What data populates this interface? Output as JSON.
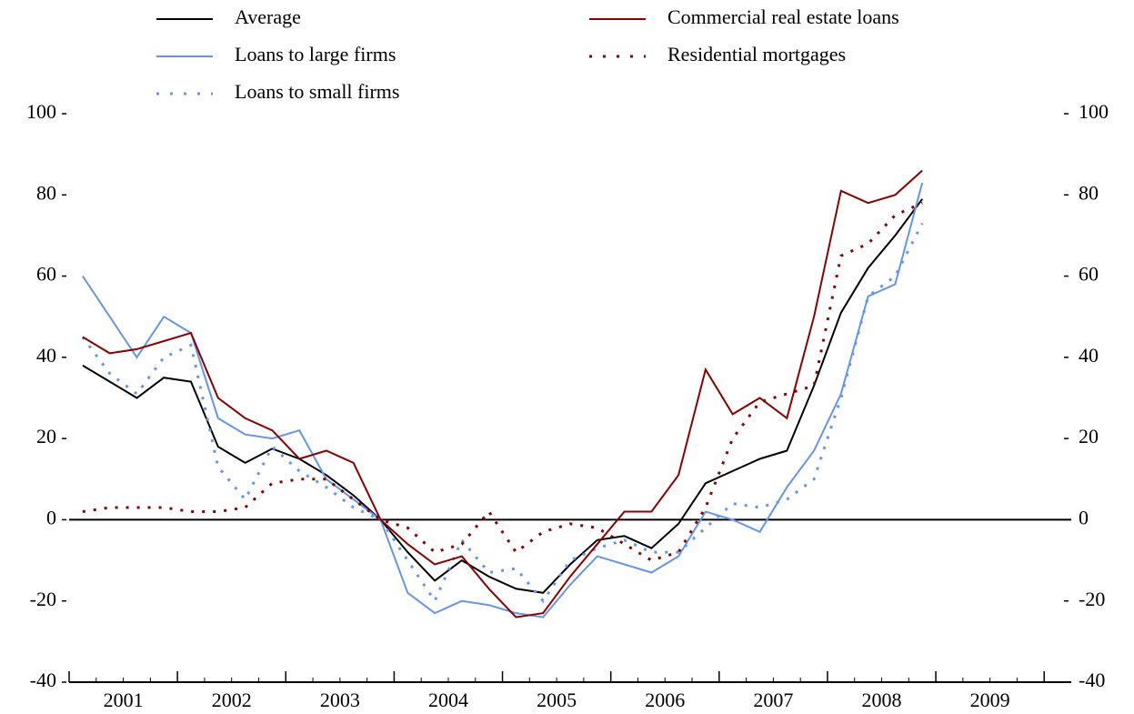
{
  "chart_data": {
    "type": "line",
    "x": [
      2001.125,
      2001.375,
      2001.625,
      2001.875,
      2002.125,
      2002.375,
      2002.625,
      2002.875,
      2003.125,
      2003.375,
      2003.625,
      2003.875,
      2004.125,
      2004.375,
      2004.625,
      2004.875,
      2005.125,
      2005.375,
      2005.625,
      2005.875,
      2006.125,
      2006.375,
      2006.625,
      2006.875,
      2007.125,
      2007.375,
      2007.625,
      2007.875,
      2008.125,
      2008.375,
      2008.625,
      2008.875
    ],
    "xlim": [
      2001,
      2010.25
    ],
    "xticks": [
      2001,
      2002,
      2003,
      2004,
      2005,
      2006,
      2007,
      2008,
      2009,
      2010
    ],
    "xticklabels": [
      "2001",
      "2002",
      "2003",
      "2004",
      "2005",
      "2006",
      "2007",
      "2008",
      "2009"
    ],
    "ylim": [
      -40,
      100
    ],
    "yticks": [
      -40,
      -20,
      0,
      20,
      40,
      60,
      80,
      100
    ],
    "y2lim": [
      -40,
      100
    ],
    "y2ticks": [
      -40,
      -20,
      0,
      20,
      40,
      60,
      80,
      100
    ],
    "zero_line": true,
    "series": [
      {
        "name": "Average",
        "color": "#000000",
        "dash": false,
        "values": [
          38,
          34,
          30,
          35,
          34,
          18,
          14,
          17.5,
          15,
          11,
          6,
          0,
          -8,
          -15,
          -10,
          -14,
          -17,
          -18,
          -11,
          -5,
          -4,
          -7,
          -1,
          9,
          12,
          15,
          17,
          33,
          51,
          62,
          70,
          79
        ]
      },
      {
        "name": "Loans to large firms",
        "color": "#6495ed",
        "dash": false,
        "values": [
          60,
          50,
          40,
          50,
          46,
          25,
          21,
          20,
          22,
          10,
          5,
          0,
          -18,
          -23,
          -20,
          -21,
          -23,
          -24,
          -16,
          -9,
          -11,
          -13,
          -9,
          2,
          0,
          -3,
          8,
          17,
          31,
          55,
          58,
          83
        ]
      },
      {
        "name": "Loans to small firms",
        "color": "#6495ed",
        "dash": true,
        "values": [
          45,
          36,
          31,
          40,
          43,
          13,
          5,
          18,
          12,
          8,
          3,
          0,
          -10,
          -20,
          -5,
          -13,
          -12,
          -20,
          -10,
          -7,
          -5,
          -8,
          -8,
          -2,
          4,
          3,
          5,
          10,
          30,
          55,
          60,
          73
        ]
      },
      {
        "name": "Commercial real estate loans",
        "color": "#8b0000",
        "dash": false,
        "values": [
          45,
          41,
          42,
          44,
          46,
          30,
          25,
          22,
          15,
          17,
          14,
          0,
          -6,
          -11,
          -9,
          -17,
          -24,
          -23,
          -14,
          -6,
          2,
          2,
          11,
          37,
          26,
          30,
          25,
          50,
          81,
          78,
          80,
          86
        ]
      },
      {
        "name": "Residential mortgages",
        "color": "#8b0000",
        "dash": true,
        "axis": "y2",
        "values": [
          2,
          3,
          3,
          3,
          2,
          2,
          3,
          9,
          10,
          10,
          5,
          0,
          -2,
          -8,
          -6,
          2,
          -8,
          -3,
          -1,
          -2,
          -6,
          -10,
          -8,
          3,
          20,
          29,
          31,
          33,
          65,
          68,
          75,
          78
        ]
      }
    ]
  }
}
